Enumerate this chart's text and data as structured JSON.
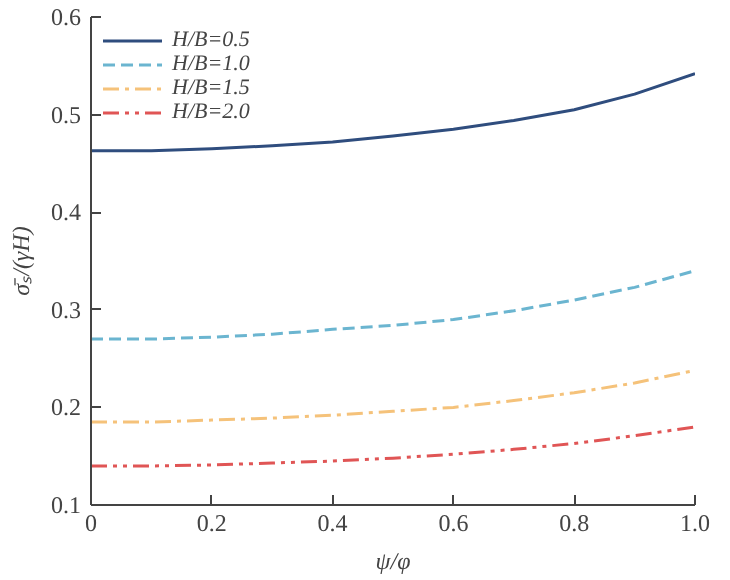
{
  "chart_data": {
    "type": "line",
    "xlabel": "ψ/φ",
    "ylabel": "σ̄ₛ/(γH)",
    "x": [
      0,
      0.1,
      0.2,
      0.3,
      0.4,
      0.5,
      0.6,
      0.7,
      0.8,
      0.9,
      1.0
    ],
    "series": [
      {
        "name": "H/B=0.5",
        "color": "#2f4d7e",
        "line_style": "solid",
        "values": [
          0.463,
          0.463,
          0.465,
          0.468,
          0.472,
          0.478,
          0.485,
          0.494,
          0.505,
          0.521,
          0.542
        ]
      },
      {
        "name": "H/B=1.0",
        "color": "#6bb5d0",
        "line_style": "dashed",
        "values": [
          0.27,
          0.27,
          0.272,
          0.275,
          0.28,
          0.284,
          0.29,
          0.299,
          0.31,
          0.323,
          0.34
        ]
      },
      {
        "name": "H/B=1.5",
        "color": "#f5c27a",
        "line_style": "dashdot",
        "values": [
          0.185,
          0.185,
          0.187,
          0.189,
          0.192,
          0.196,
          0.2,
          0.207,
          0.215,
          0.225,
          0.238
        ]
      },
      {
        "name": "H/B=2.0",
        "color": "#e05555",
        "line_style": "dashdotdot",
        "values": [
          0.14,
          0.14,
          0.141,
          0.143,
          0.145,
          0.148,
          0.152,
          0.157,
          0.163,
          0.171,
          0.18
        ]
      }
    ],
    "xlim": [
      0,
      1.0
    ],
    "ylim": [
      0.1,
      0.6
    ],
    "xticks": [
      0,
      0.2,
      0.4,
      0.6,
      0.8,
      {
        "value": 1.0,
        "label": "1.0"
      }
    ],
    "yticks": [
      0.1,
      0.2,
      0.3,
      0.4,
      0.5,
      0.6
    ],
    "grid": false,
    "legend": "top left",
    "marker": "none"
  }
}
